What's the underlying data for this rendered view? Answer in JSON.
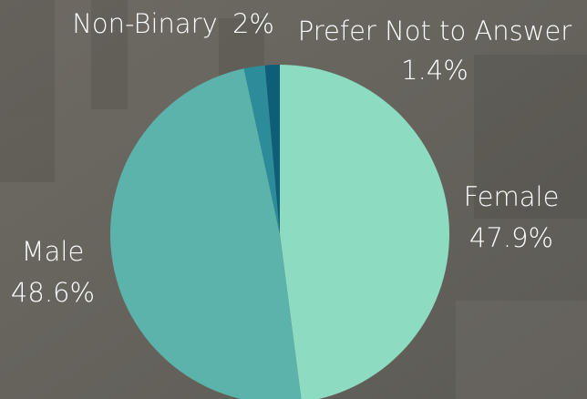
{
  "chart_data": {
    "type": "pie",
    "categories": [
      "Female",
      "Male",
      "Non-Binary",
      "Prefer Not to Answer"
    ],
    "values": [
      47.9,
      48.6,
      2,
      1.4
    ],
    "value_labels": [
      "47.9%",
      "48.6%",
      "2%",
      "1.4%"
    ],
    "colors": [
      "#8ddbc0",
      "#5bb3ac",
      "#2d8c99",
      "#0f5e78"
    ]
  }
}
